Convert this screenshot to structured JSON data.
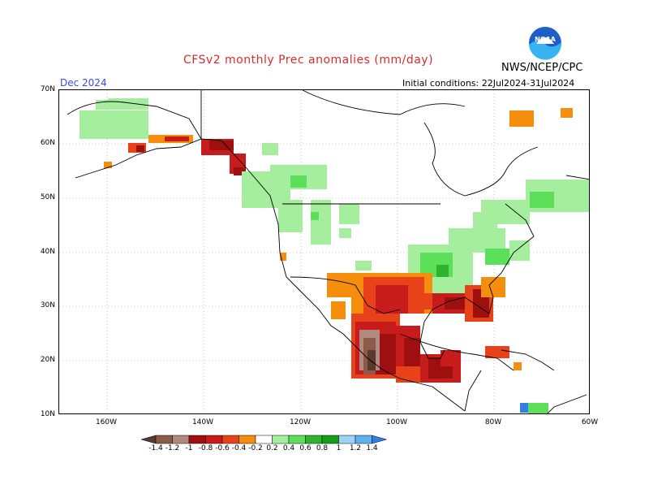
{
  "title": "CFSv2 monthly Prec anomalies (mm/day)",
  "org": "NWS/NCEP/CPC",
  "logo_text": "NOAA",
  "month_label": "Dec 2024",
  "initial_conditions": "Initial conditions: 22Jul2024-31Jul2024",
  "lat_labels": [
    "70N",
    "60N",
    "50N",
    "40N",
    "30N",
    "20N",
    "10N"
  ],
  "lon_labels": [
    "160W",
    "140W",
    "120W",
    "100W",
    "80W",
    "60W"
  ],
  "colorbar": {
    "labels": [
      "-1.4",
      "-1.2",
      "-1",
      "-0.8",
      "-0.6",
      "-0.4",
      "-0.2",
      "0.2",
      "0.4",
      "0.6",
      "0.8",
      "1",
      "1.2",
      "1.4"
    ],
    "colors": [
      "#5b3a2e",
      "#8c5a48",
      "#b08a7e",
      "#9e0f0f",
      "#c81b1b",
      "#e8421a",
      "#f58e0c",
      "#ffffff",
      "#a4ee9e",
      "#5ce05a",
      "#2fb42f",
      "#179c17",
      "#9fd3f5",
      "#5fb2f2",
      "#2f7fe6"
    ]
  },
  "map": {
    "land_color": "#ffffff",
    "border_color": "#000000",
    "grid_color": "#999999"
  }
}
